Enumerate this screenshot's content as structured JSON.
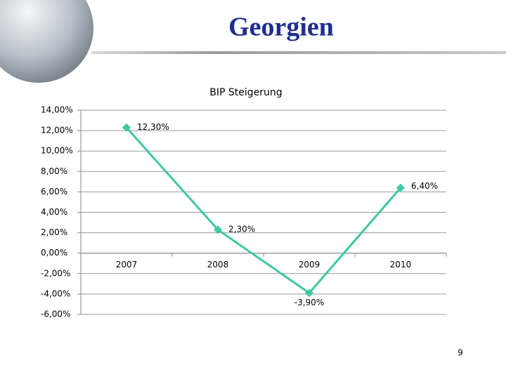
{
  "title": "Georgien",
  "page_number": "9",
  "chart_data": {
    "type": "line",
    "title": "BIP Steigerung",
    "categories": [
      "2007",
      "2008",
      "2009",
      "2010"
    ],
    "series": [
      {
        "name": "BIP Steigerung",
        "color": "#3ec9a3",
        "values": [
          12.3,
          2.3,
          -3.9,
          6.4
        ],
        "value_labels": [
          "12,30%",
          "2,30%",
          "-3,90%",
          "6,40%"
        ]
      }
    ],
    "ylim": [
      -6,
      14
    ],
    "yticks": [
      {
        "value": 14,
        "label": "14,00%"
      },
      {
        "value": 12,
        "label": "12,00%"
      },
      {
        "value": 10,
        "label": "10,00%"
      },
      {
        "value": 8,
        "label": "8,00%"
      },
      {
        "value": 6,
        "label": "6,00%"
      },
      {
        "value": 4,
        "label": "4,00%"
      },
      {
        "value": 2,
        "label": "2,00%"
      },
      {
        "value": 0,
        "label": "0,00%"
      },
      {
        "value": -2,
        "label": "-2,00%"
      },
      {
        "value": -4,
        "label": "-4,00%"
      },
      {
        "value": -6,
        "label": "-6,00%"
      }
    ],
    "grid": true
  }
}
